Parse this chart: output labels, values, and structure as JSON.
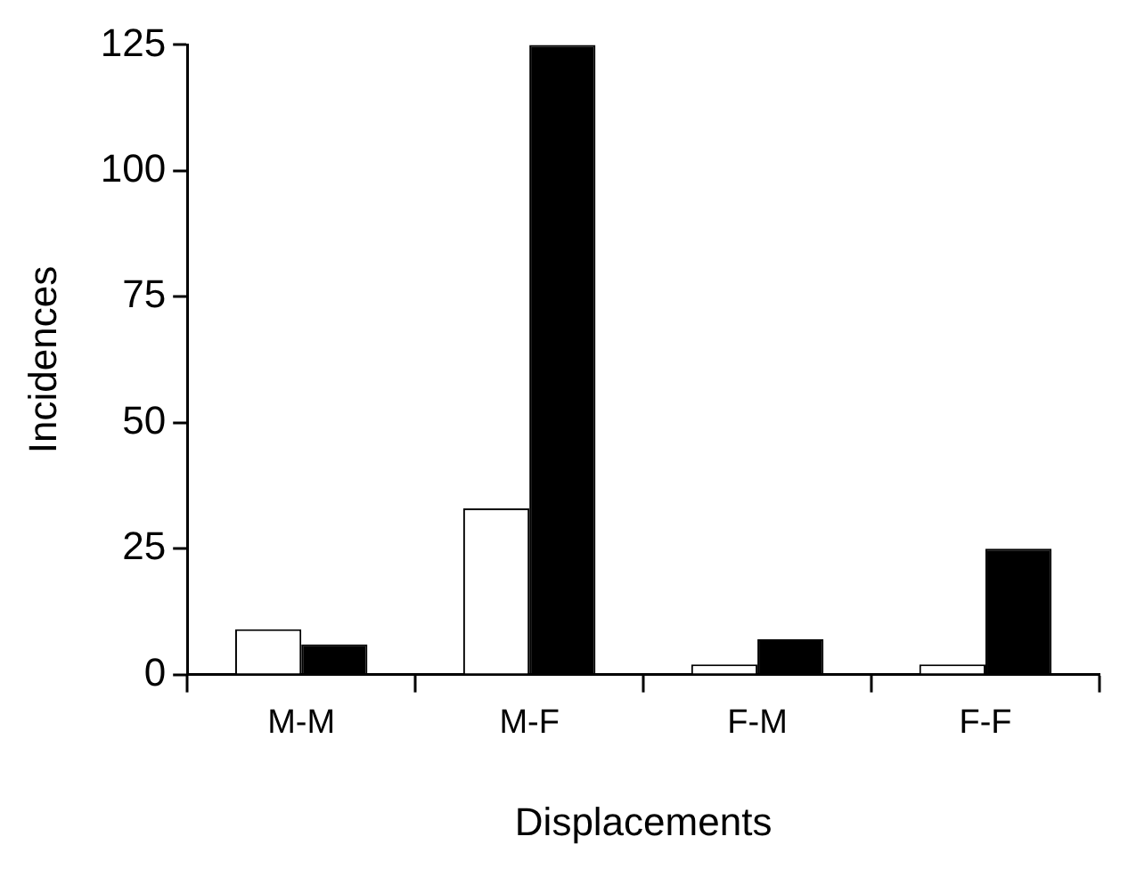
{
  "chart_data": {
    "type": "bar",
    "xlabel": "Displacements",
    "ylabel": "Incidences",
    "categories": [
      "M-M",
      "M-F",
      "F-M",
      "F-F"
    ],
    "series": [
      {
        "color": "#ffffff",
        "values": [
          9,
          33,
          2,
          2
        ]
      },
      {
        "color": "#000000",
        "values": [
          6,
          125,
          7,
          25
        ]
      }
    ],
    "ylim": [
      0,
      125
    ],
    "yticks": [
      0,
      25,
      50,
      75,
      100,
      125
    ],
    "grid": false,
    "legend": false
  }
}
